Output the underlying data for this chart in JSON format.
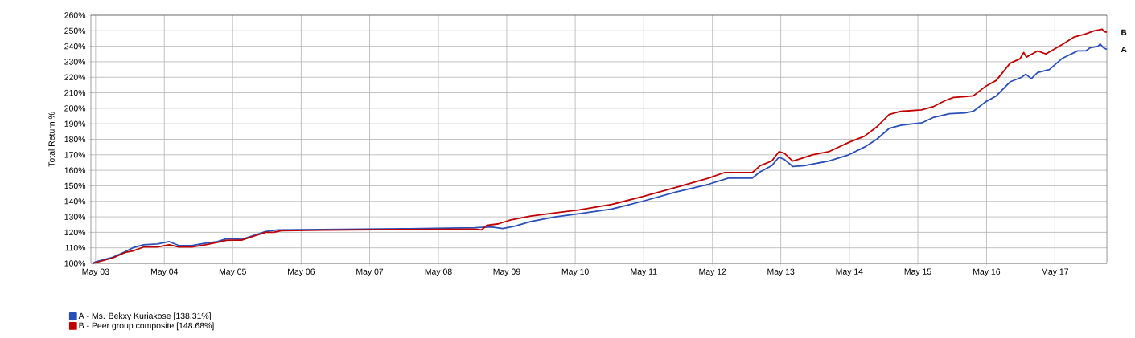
{
  "chart_data": {
    "type": "line",
    "ylabel": "Total Return %",
    "xlim": [
      "2003-04-06",
      "2018-02-02"
    ],
    "ylim": [
      100,
      260
    ],
    "xticks": [
      {
        "value": "2003-05-01",
        "label": "May 03"
      },
      {
        "value": "2004-05-01",
        "label": "May 04"
      },
      {
        "value": "2005-05-01",
        "label": "May 05"
      },
      {
        "value": "2006-05-01",
        "label": "May 06"
      },
      {
        "value": "2007-05-01",
        "label": "May 07"
      },
      {
        "value": "2008-05-01",
        "label": "May 08"
      },
      {
        "value": "2009-05-01",
        "label": "May 09"
      },
      {
        "value": "2010-05-01",
        "label": "May 10"
      },
      {
        "value": "2011-05-01",
        "label": "May 11"
      },
      {
        "value": "2012-05-01",
        "label": "May 12"
      },
      {
        "value": "2013-05-01",
        "label": "May 13"
      },
      {
        "value": "2014-05-01",
        "label": "May 14"
      },
      {
        "value": "2015-05-01",
        "label": "May 15"
      },
      {
        "value": "2016-05-01",
        "label": "May 16"
      },
      {
        "value": "2017-05-01",
        "label": "May 17"
      }
    ],
    "yticks": [
      {
        "value": 100,
        "label": "100%"
      },
      {
        "value": 110,
        "label": "110%"
      },
      {
        "value": 120,
        "label": "120%"
      },
      {
        "value": 130,
        "label": "130%"
      },
      {
        "value": 140,
        "label": "140%"
      },
      {
        "value": 150,
        "label": "150%"
      },
      {
        "value": 160,
        "label": "160%"
      },
      {
        "value": 170,
        "label": "170%"
      },
      {
        "value": 180,
        "label": "180%"
      },
      {
        "value": 190,
        "label": "190%"
      },
      {
        "value": 200,
        "label": "200%"
      },
      {
        "value": 210,
        "label": "210%"
      },
      {
        "value": 220,
        "label": "220%"
      },
      {
        "value": 230,
        "label": "230%"
      },
      {
        "value": 240,
        "label": "240%"
      },
      {
        "value": 250,
        "label": "250%"
      },
      {
        "value": 260,
        "label": "260%"
      }
    ],
    "grid": true,
    "legend": "bottom left",
    "marker": "none",
    "line_style": "solid",
    "series": [
      {
        "name": "A - Ms. Bekxy Kuriakose [138.31%]",
        "color": "#2a4fb8",
        "x": [
          "2003-04-17",
          "2003-05-01",
          "2003-08-01",
          "2003-10-05",
          "2003-11-15",
          "2004-01-11",
          "2004-03-25",
          "2004-05-27",
          "2004-07-17",
          "2004-09-24",
          "2004-12-06",
          "2005-02-09",
          "2005-04-02",
          "2005-06-18",
          "2005-09-03",
          "2005-10-24",
          "2005-12-28",
          "2006-08-19",
          "2007-10-24",
          "2008-11-11",
          "2009-02-06",
          "2009-04-10",
          "2009-06-14",
          "2009-09-06",
          "2010-01-15",
          "2010-05-23",
          "2010-11-11",
          "2011-04-24",
          "2011-10-20",
          "2012-04-10",
          "2012-07-24",
          "2012-11-29",
          "2013-01-11",
          "2013-03-14",
          "2013-04-21",
          "2013-05-20",
          "2013-07-03",
          "2013-09-03",
          "2013-10-16",
          "2014-01-11",
          "2014-04-28",
          "2014-07-21",
          "2014-09-24",
          "2014-11-29",
          "2015-01-29",
          "2015-04-06",
          "2015-05-20",
          "2015-07-21",
          "2015-10-16",
          "2016-01-08",
          "2016-02-20",
          "2016-04-24",
          "2016-06-22",
          "2016-09-03",
          "2016-11-04",
          "2016-11-26",
          "2016-12-25",
          "2017-01-29",
          "2017-04-02",
          "2017-06-07",
          "2017-08-30",
          "2017-10-13",
          "2017-11-04",
          "2017-12-17",
          "2017-12-28",
          "2018-01-15",
          "2018-02-02"
        ],
        "values": [
          100,
          101,
          104,
          107.5,
          110,
          112,
          112.5,
          114,
          111.5,
          111.5,
          113,
          114,
          116,
          115.5,
          118.5,
          120.5,
          121.5,
          121.8,
          122.3,
          123,
          123.5,
          122.5,
          124,
          127,
          130,
          132,
          135,
          140,
          146,
          151,
          155,
          155,
          159,
          163,
          168.5,
          167,
          162.5,
          163,
          164,
          166,
          170,
          175,
          180,
          187,
          189,
          190,
          190.5,
          194,
          196.5,
          197,
          198,
          204,
          208,
          217,
          220,
          222,
          219,
          223,
          225,
          232,
          237,
          237,
          239,
          240,
          241.5,
          239,
          238
        ]
      },
      {
        "name": "B - Peer group composite [148.68%]",
        "color": "#c00000",
        "x": [
          "2003-04-17",
          "2003-08-01",
          "2003-10-05",
          "2003-11-15",
          "2004-01-11",
          "2004-03-25",
          "2004-05-27",
          "2004-07-17",
          "2004-09-24",
          "2004-12-06",
          "2005-02-09",
          "2005-04-02",
          "2005-06-18",
          "2005-09-03",
          "2005-10-24",
          "2005-12-06",
          "2006-01-15",
          "2006-08-19",
          "2007-10-24",
          "2008-11-11",
          "2008-12-17",
          "2009-01-15",
          "2009-03-18",
          "2009-05-23",
          "2009-09-06",
          "2010-01-15",
          "2010-05-23",
          "2010-11-11",
          "2011-04-24",
          "2011-10-20",
          "2012-04-10",
          "2012-07-03",
          "2012-11-29",
          "2013-01-11",
          "2013-03-14",
          "2013-04-21",
          "2013-05-20",
          "2013-07-03",
          "2013-08-15",
          "2013-10-16",
          "2014-01-11",
          "2014-04-28",
          "2014-07-21",
          "2014-09-24",
          "2014-11-29",
          "2015-01-29",
          "2015-05-20",
          "2015-07-21",
          "2015-09-24",
          "2015-11-07",
          "2016-01-08",
          "2016-02-20",
          "2016-04-24",
          "2016-06-22",
          "2016-09-03",
          "2016-10-27",
          "2016-11-15",
          "2016-11-29",
          "2017-01-29",
          "2017-03-14",
          "2017-06-07",
          "2017-08-12",
          "2017-10-13",
          "2017-11-26",
          "2018-01-08",
          "2018-01-18",
          "2018-02-02"
        ],
        "values": [
          100,
          103.5,
          107,
          108,
          110.5,
          110.5,
          112,
          110.5,
          110.5,
          112,
          113.5,
          115,
          115,
          118,
          120,
          120,
          121,
          121.4,
          121.8,
          122,
          121.5,
          124.5,
          125.5,
          128,
          130.5,
          132.5,
          134.5,
          138,
          143,
          149,
          155,
          158.5,
          158.5,
          163,
          166,
          172,
          171,
          166,
          167.5,
          170,
          172,
          178,
          182,
          188,
          196,
          198,
          199,
          201,
          205,
          207,
          207.5,
          208,
          214,
          218,
          229,
          232,
          236,
          233,
          237,
          235,
          241,
          246,
          248,
          250,
          251,
          249.5,
          249
        ]
      }
    ],
    "annotations": [
      {
        "text": "B",
        "x": "2018-02-02",
        "y": 249
      },
      {
        "text": "A",
        "x": "2018-02-02",
        "y": 238
      }
    ]
  }
}
